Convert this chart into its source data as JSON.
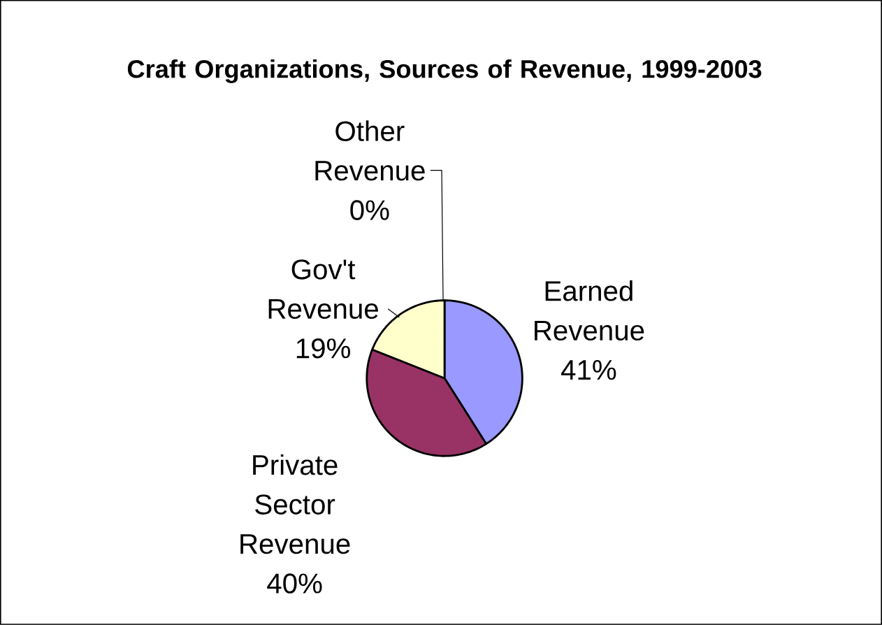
{
  "chart_data": {
    "type": "pie",
    "title": "Craft Organizations, Sources of Revenue, 1999-2003",
    "categories": [
      "Earned Revenue",
      "Private Sector Revenue",
      "Gov't Revenue",
      "Other Revenue"
    ],
    "values": [
      41,
      40,
      19,
      0
    ],
    "value_labels": [
      "41%",
      "40%",
      "19%",
      "0%"
    ],
    "colors": [
      "#9999ff",
      "#993366",
      "#ffffcc",
      "#ccffff"
    ]
  }
}
